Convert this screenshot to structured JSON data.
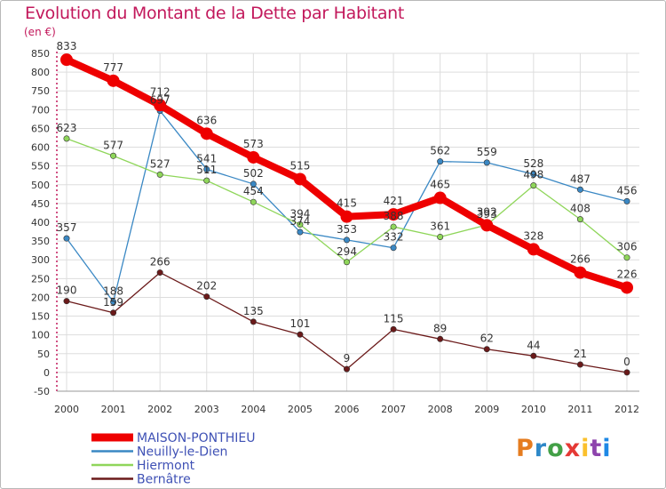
{
  "header": {
    "title": "Evolution du Montant de la Dette par Habitant",
    "unit": "(en €)"
  },
  "colors": {
    "title": "#c2185b",
    "grid": "#dddddd",
    "axis": "#c2185b",
    "legend_text": "#3f51b5"
  },
  "brand": {
    "text": "Proxiti",
    "letter_colors": [
      "#e57c1f",
      "#2e88c8",
      "#43a047",
      "#e53935",
      "#fbc02d",
      "#8e44ad",
      "#1e88e5"
    ]
  },
  "chart_data": {
    "type": "line",
    "title": "Evolution du Montant de la Dette par Habitant",
    "ylabel": "(en €)",
    "xlabel": "",
    "x": [
      "2000",
      "2001",
      "2002",
      "2003",
      "2004",
      "2005",
      "2006",
      "2007",
      "2008",
      "2009",
      "2010",
      "2011",
      "2012"
    ],
    "ylim": [
      -50,
      850
    ],
    "yticks": [
      -50,
      0,
      50,
      100,
      150,
      200,
      250,
      300,
      350,
      400,
      450,
      500,
      550,
      600,
      650,
      700,
      750,
      800,
      850
    ],
    "grid": true,
    "legend_position": "bottom-left",
    "series": [
      {
        "name": "MAISON-PONTHIEU",
        "color": "#ee0000",
        "emphasis": true,
        "values": [
          833,
          777,
          712,
          636,
          573,
          515,
          415,
          421,
          465,
          392,
          328,
          266,
          226
        ]
      },
      {
        "name": "Neuilly-le-Dien",
        "color": "#3a88c4",
        "emphasis": false,
        "values": [
          357,
          188,
          697,
          541,
          502,
          374,
          353,
          332,
          562,
          559,
          528,
          487,
          456
        ]
      },
      {
        "name": "Hiermont",
        "color": "#8fd65a",
        "emphasis": false,
        "values": [
          623,
          577,
          527,
          511,
          454,
          394,
          294,
          388,
          361,
          393,
          498,
          408,
          306
        ]
      },
      {
        "name": "Bernâtre",
        "color": "#6b1a1a",
        "emphasis": false,
        "values": [
          190,
          159,
          266,
          202,
          135,
          101,
          9,
          115,
          89,
          62,
          44,
          21,
          0
        ]
      }
    ]
  }
}
